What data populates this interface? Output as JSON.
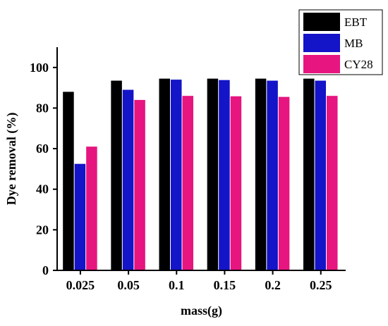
{
  "chart_data": {
    "type": "bar",
    "xlabel": "mass(g)",
    "ylabel": "Dye removal (%)",
    "categories": [
      "0.025",
      "0.05",
      "0.1",
      "0.15",
      "0.2",
      "0.25"
    ],
    "ylim": [
      0,
      110
    ],
    "yticks": [
      0,
      20,
      40,
      60,
      80,
      100
    ],
    "grid": false,
    "legend_position": "top-right",
    "series": [
      {
        "name": "EBT",
        "color": "#000000",
        "values": [
          88,
          93.5,
          94.5,
          94.5,
          94.5,
          94.5
        ]
      },
      {
        "name": "MB",
        "color": "#1414c8",
        "values": [
          52.5,
          89,
          94,
          93.8,
          93.5,
          93.5
        ]
      },
      {
        "name": "CY28",
        "color": "#e6157f",
        "values": [
          61,
          84,
          86,
          85.8,
          85.5,
          86
        ]
      }
    ]
  }
}
